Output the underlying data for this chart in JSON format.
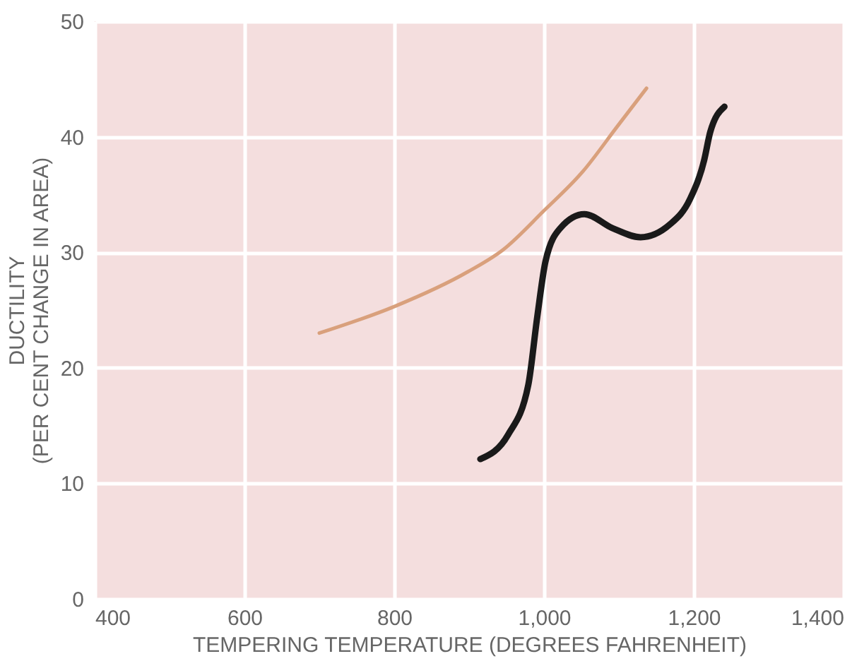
{
  "chart_data": {
    "type": "line",
    "xlabel": "TEMPERING TEMPERATURE (DEGREES FAHRENHEIT)",
    "ylabel": "DUCTILITY\n(PER CENT CHANGE IN AREA)",
    "xlim": [
      400,
      1400
    ],
    "xticks": [
      400,
      600,
      800,
      {
        "value": 1000,
        "label": "1,000"
      },
      {
        "value": 1200,
        "label": "1,200"
      },
      {
        "value": 1400,
        "label": "1,400"
      }
    ],
    "ylim": [
      0,
      50
    ],
    "yticks": [
      0,
      10,
      20,
      30,
      40,
      50
    ],
    "grid": true,
    "marker": "none",
    "series": [
      {
        "color": "#d9a07c",
        "line_style": "solid",
        "x": [
          700,
          800,
          898,
          945,
          1000,
          1052,
          1098,
          1137
        ],
        "values": [
          23.0,
          25.3,
          28.3,
          30.2,
          33.6,
          37.0,
          40.9,
          44.2
        ]
      },
      {
        "color": "#1a1a1a",
        "line_style": "solid",
        "x": [
          915,
          952,
          979,
          991,
          1002,
          1022,
          1054,
          1091,
          1129,
          1168,
          1195,
          1214,
          1222,
          1241
        ],
        "values": [
          12.1,
          14.2,
          18.5,
          24.4,
          29.2,
          32.1,
          33.3,
          32.1,
          31.3,
          32.4,
          34.6,
          38.0,
          40.4,
          42.6
        ]
      }
    ]
  }
}
